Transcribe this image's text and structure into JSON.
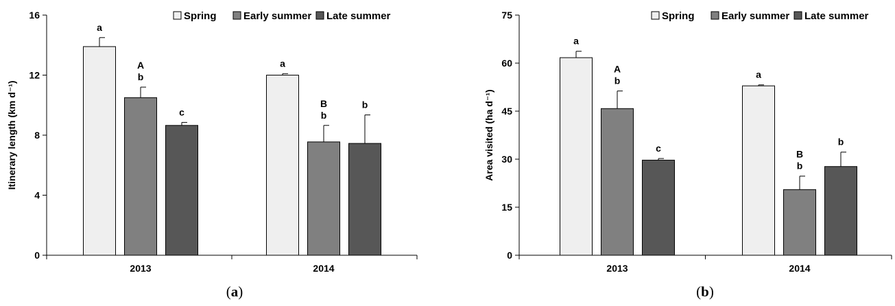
{
  "series_colors": [
    "#efefef",
    "#808080",
    "#575757"
  ],
  "chart_data": [
    {
      "type": "bar",
      "panel_label": "a",
      "ylabel": "Itinerary length (km d⁻¹)",
      "ylim": [
        0,
        16
      ],
      "yticks": [
        0,
        4,
        8,
        12,
        16
      ],
      "categories": [
        "2013",
        "2014"
      ],
      "legend_position": "top-right",
      "grid": false,
      "series": [
        {
          "name": "Spring",
          "values": [
            13.9,
            12.0
          ],
          "errors": [
            0.6,
            0.1
          ],
          "annotations": [
            "a",
            "a"
          ]
        },
        {
          "name": "Early summer",
          "values": [
            10.5,
            7.55
          ],
          "errors": [
            0.7,
            1.1
          ],
          "annotations": [
            "A\nb",
            "B\nb"
          ]
        },
        {
          "name": "Late summer",
          "values": [
            8.65,
            7.45
          ],
          "errors": [
            0.2,
            1.9
          ],
          "annotations": [
            "c",
            "b"
          ]
        }
      ]
    },
    {
      "type": "bar",
      "panel_label": "b",
      "ylabel": "Area visited (ha d⁻¹)",
      "ylim": [
        0,
        75
      ],
      "yticks": [
        0,
        15,
        30,
        45,
        60,
        75
      ],
      "categories": [
        "2013",
        "2014"
      ],
      "legend_position": "top-right",
      "grid": false,
      "series": [
        {
          "name": "Spring",
          "values": [
            61.7,
            52.9
          ],
          "errors": [
            2.0,
            0.3
          ],
          "annotations": [
            "a",
            "a"
          ]
        },
        {
          "name": "Early summer",
          "values": [
            45.8,
            20.5
          ],
          "errors": [
            5.5,
            4.2
          ],
          "annotations": [
            "A\nb",
            "B\nb"
          ]
        },
        {
          "name": "Late summer",
          "values": [
            29.7,
            27.7
          ],
          "errors": [
            0.5,
            4.5
          ],
          "annotations": [
            "c",
            "b"
          ]
        }
      ]
    }
  ]
}
